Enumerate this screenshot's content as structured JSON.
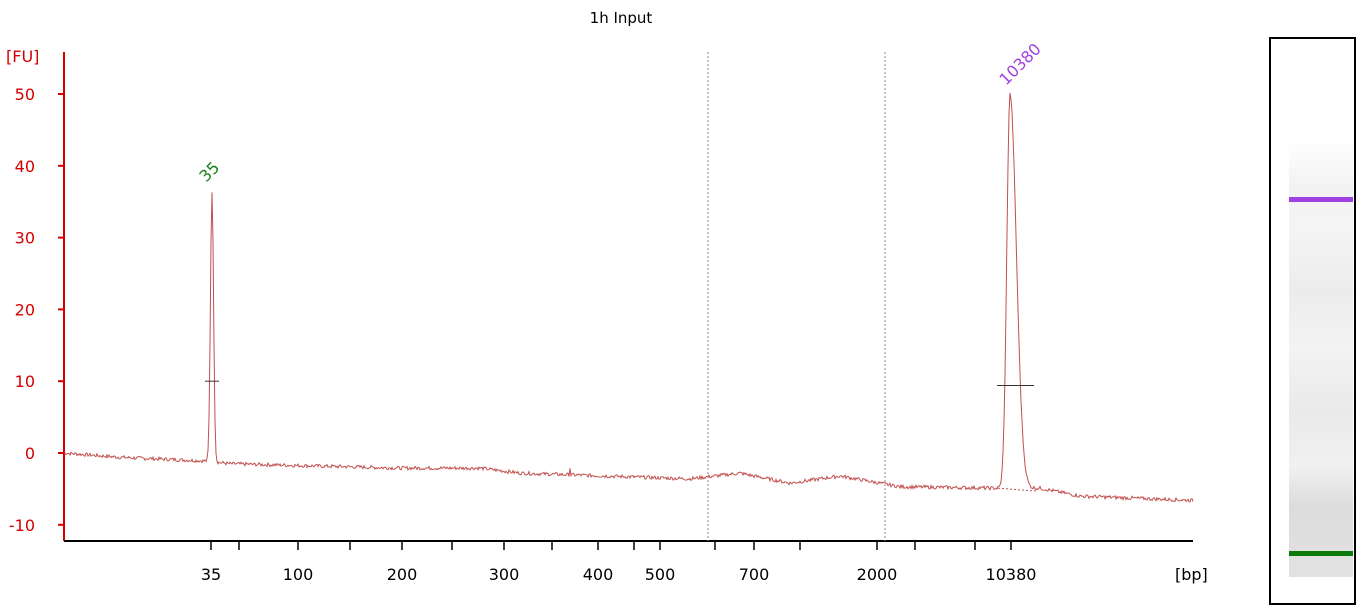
{
  "chart_data": {
    "type": "line",
    "title": "1h Input",
    "ylabel": "[FU]",
    "xlabel": "[bp]",
    "ylim": [
      -12,
      56
    ],
    "yticks": [
      -10,
      0,
      10,
      20,
      30,
      40,
      50
    ],
    "xtick_labels": [
      "35",
      "100",
      "200",
      "300",
      "400",
      "500",
      "700",
      "2000",
      "10380"
    ],
    "peaks": [
      {
        "label": "35",
        "height": 36.5,
        "color": "#1a7f1a"
      },
      {
        "label": "10380",
        "height": 50,
        "color": "#a040e0"
      }
    ],
    "grid": false,
    "colors": {
      "trace": "#c0504d",
      "axis": "#d40000",
      "marker_lower": "#1a7f1a",
      "marker_upper": "#a040e0"
    }
  },
  "gel": {
    "bands": [
      {
        "name": "upper-marker",
        "color": "#a040e0"
      },
      {
        "name": "lower-marker",
        "color": "#0a7a0a"
      }
    ]
  }
}
